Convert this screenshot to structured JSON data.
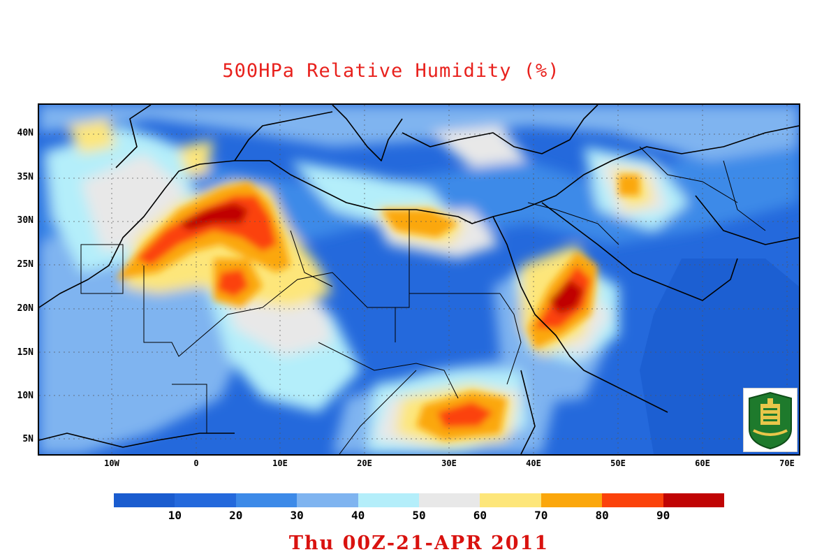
{
  "title": "500HPa Relative Humidity (%)",
  "timestamp": "Thu 00Z-21-APR 2011",
  "map": {
    "lon_range": [
      -20,
      70
    ],
    "lat_range": [
      3,
      43
    ],
    "lat_ticks": [
      "5N",
      "10N",
      "15N",
      "20N",
      "25N",
      "30N",
      "35N",
      "40N"
    ],
    "lat_values": [
      5,
      10,
      15,
      20,
      25,
      30,
      35,
      40
    ],
    "lon_ticks": [
      "10W",
      "0",
      "10E",
      "20E",
      "30E",
      "40E",
      "50E",
      "60E",
      "70E"
    ],
    "lon_values": [
      -10,
      0,
      10,
      20,
      30,
      40,
      50,
      60,
      70
    ]
  },
  "colorbar": {
    "colors": [
      "#1a5ccf",
      "#2469dc",
      "#3d8ae8",
      "#7fb4f0",
      "#b4eefa",
      "#e8e8e8",
      "#fde67a",
      "#fba70c",
      "#fb420b",
      "#c00404"
    ],
    "labels": [
      "10",
      "20",
      "30",
      "40",
      "50",
      "60",
      "70",
      "80",
      "90"
    ]
  },
  "logo_icon": "university-seal-icon"
}
